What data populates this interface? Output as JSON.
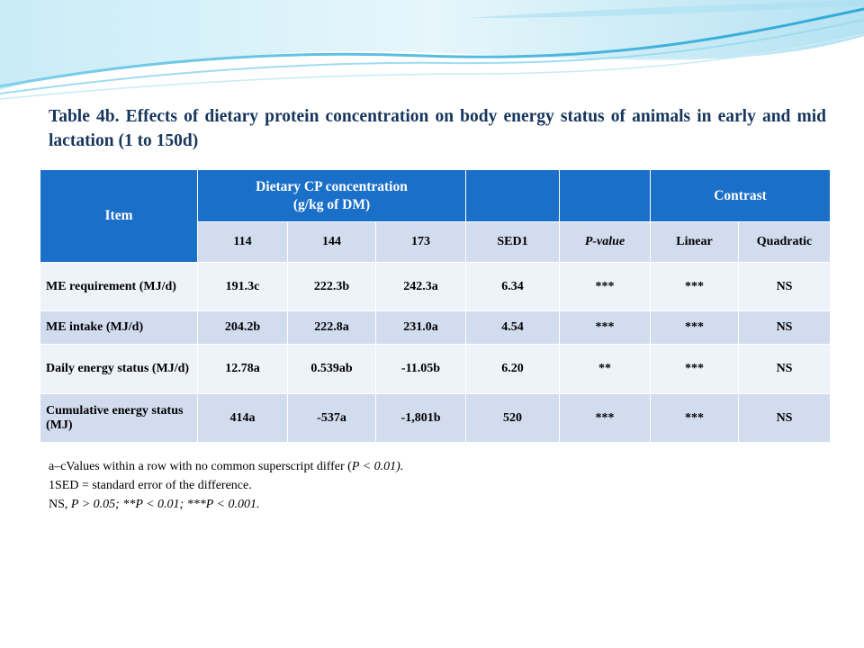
{
  "title": "Table 4b. Effects of dietary protein concentration on body energy status of animals in early and mid lactation (1 to 150d)",
  "table": {
    "item_header": "Item",
    "cp_header_line1": "Dietary CP concentration",
    "cp_header_line2": "(g/kg of DM)",
    "contrast_header": "Contrast",
    "subheaders": [
      "114",
      "144",
      "173",
      "SED1",
      "P-value",
      "Linear",
      "Quadratic"
    ],
    "rows": [
      {
        "item": "ME requirement (MJ/d)",
        "values": [
          "191.3c",
          "222.3b",
          "242.3a",
          "6.34",
          "***",
          "***",
          "NS"
        ]
      },
      {
        "item": "ME intake (MJ/d)",
        "values": [
          "204.2b",
          "222.8a",
          "231.0a",
          "4.54",
          "***",
          "***",
          "NS"
        ]
      },
      {
        "item": "Daily energy status (MJ/d)",
        "values": [
          "12.78a",
          "0.539ab",
          "-11.05b",
          "6.20",
          "**",
          "***",
          "NS"
        ]
      },
      {
        "item": "Cumulative energy status (MJ)",
        "values": [
          "414a",
          "-537a",
          "-1,801b",
          "520",
          "***",
          "***",
          "NS"
        ]
      }
    ]
  },
  "notes": {
    "line1_start": "a–cValues within a row with no common superscript differ (",
    "line1_italic": "P < 0.01).",
    "line2": "1SED = standard error of the difference.",
    "line3_start": "NS, ",
    "line3_italic": "P > 0.05; **P < 0.01; ***P < 0.001."
  },
  "colors": {
    "header_blue": "#1a6fc9",
    "row_light": "#eef2f9",
    "row_dark": "#d2dcef",
    "title_navy": "#17365d"
  }
}
